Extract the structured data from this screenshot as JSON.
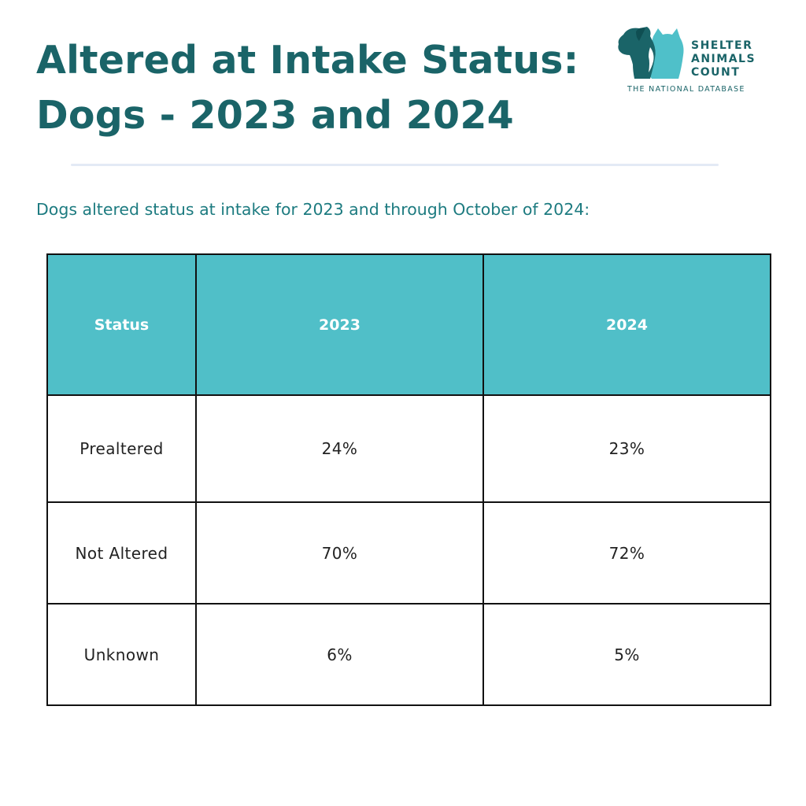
{
  "title": {
    "line1": "Altered at Intake Status:",
    "line2": "Dogs - 2023 and 2024"
  },
  "logo": {
    "line1": "SHELTER",
    "line2": "ANIMALS",
    "line3": "COUNT",
    "tagline": "THE NATIONAL DATABASE",
    "colors": {
      "dog": "#1a6468",
      "cat": "#4fc0c9"
    }
  },
  "subtitle": "Dogs altered status at intake for 2023 and through October of 2024:",
  "table": {
    "headers": [
      "Status",
      "2023",
      "2024"
    ],
    "rows": [
      {
        "status": "Prealtered",
        "y2023": "24%",
        "y2024": "23%"
      },
      {
        "status": "Not Altered",
        "y2023": "70%",
        "y2024": "72%"
      },
      {
        "status": "Unknown",
        "y2023": "6%",
        "y2024": "5%"
      }
    ]
  },
  "colors": {
    "title": "#1a6468",
    "subtitle": "#1d7b80",
    "header_bg": "#50bfc8",
    "header_text": "#ffffff",
    "border": "#111111",
    "divider": "#e3eaf5"
  }
}
